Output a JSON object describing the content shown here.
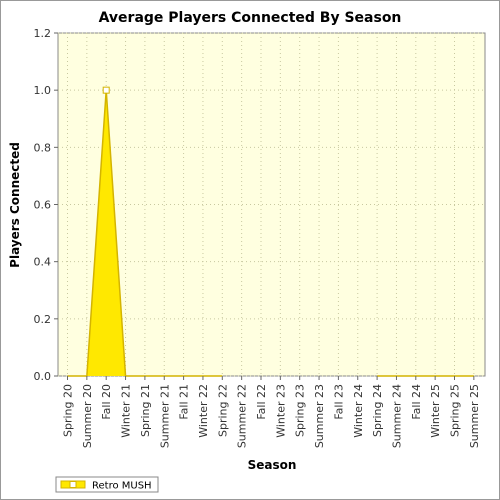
{
  "chart_data": {
    "type": "area",
    "title": "Average Players Connected By Season",
    "xlabel": "Season",
    "ylabel": "Players Connected",
    "ylim": [
      0,
      1.2
    ],
    "y_ticks": [
      "0.0",
      "0.2",
      "0.4",
      "0.6",
      "0.8",
      "1.0",
      "1.2"
    ],
    "grid": true,
    "legend_position": "bottom-left",
    "categories": [
      "Spring 20",
      "Summer 20",
      "Fall 20",
      "Winter 21",
      "Spring 21",
      "Summer 21",
      "Fall 21",
      "Winter 22",
      "Spring 22",
      "Summer 22",
      "Fall 22",
      "Winter 23",
      "Spring 23",
      "Summer 23",
      "Fall 23",
      "Winter 24",
      "Spring 24",
      "Summer 24",
      "Fall 24",
      "Winter 25",
      "Spring 25",
      "Summer 25"
    ],
    "series": [
      {
        "name": "Retro MUSH",
        "values": [
          0,
          0,
          1.0,
          0,
          0,
          0,
          0,
          0,
          0,
          null,
          null,
          null,
          null,
          null,
          null,
          null,
          0,
          0,
          0,
          0,
          0,
          0
        ]
      }
    ],
    "colors": {
      "plot_background": "#ffffe0",
      "area_fill": "#ffe800",
      "line": "#d4b400",
      "marker_fill": "#ffffff",
      "grid": "#c8c8a0"
    }
  }
}
